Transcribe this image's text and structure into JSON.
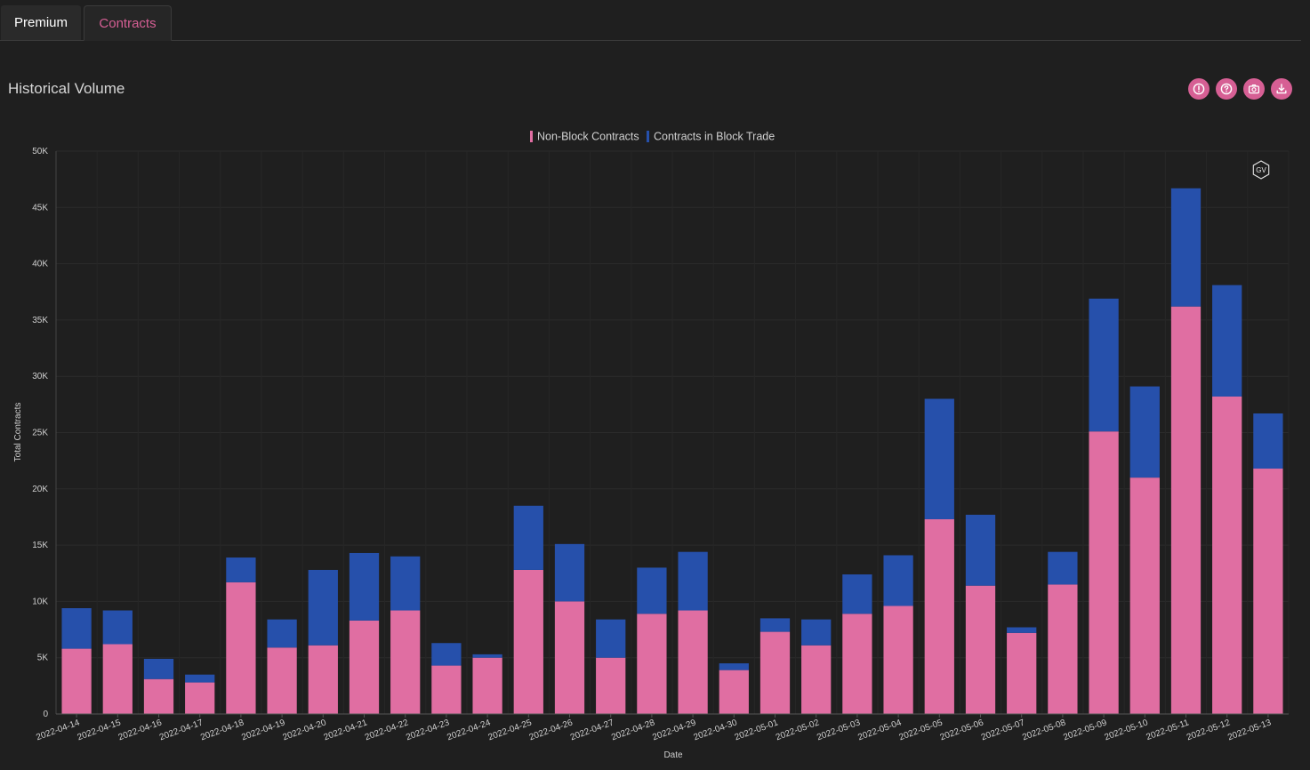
{
  "tabs": [
    {
      "label": "Premium",
      "active": false
    },
    {
      "label": "Contracts",
      "active": true
    }
  ],
  "section": {
    "title": "Historical Volume"
  },
  "toolbar": {
    "icons": [
      "alert-icon",
      "help-icon",
      "camera-icon",
      "download-icon"
    ]
  },
  "colors": {
    "accent": "#d65f94",
    "non_block": "#e06ea2",
    "block": "#2650ab",
    "background": "#1f1f1f",
    "tab_active_text": "#d65f94"
  },
  "watermark": "GV",
  "chart_data": {
    "type": "bar",
    "stacked": true,
    "xlabel": "Date",
    "ylabel": "Total Contracts",
    "ylim": [
      0,
      50000
    ],
    "yticks": [
      0,
      5000,
      10000,
      15000,
      20000,
      25000,
      30000,
      35000,
      40000,
      45000,
      50000
    ],
    "ytick_labels": [
      "0",
      "5K",
      "10K",
      "15K",
      "20K",
      "25K",
      "30K",
      "35K",
      "40K",
      "45K",
      "50K"
    ],
    "legend_position": "top-center",
    "grid": true,
    "categories": [
      "2022-04-14",
      "2022-04-15",
      "2022-04-16",
      "2022-04-17",
      "2022-04-18",
      "2022-04-19",
      "2022-04-20",
      "2022-04-21",
      "2022-04-22",
      "2022-04-23",
      "2022-04-24",
      "2022-04-25",
      "2022-04-26",
      "2022-04-27",
      "2022-04-28",
      "2022-04-29",
      "2022-04-30",
      "2022-05-01",
      "2022-05-02",
      "2022-05-03",
      "2022-05-04",
      "2022-05-05",
      "2022-05-06",
      "2022-05-07",
      "2022-05-08",
      "2022-05-09",
      "2022-05-10",
      "2022-05-11",
      "2022-05-12",
      "2022-05-13"
    ],
    "series": [
      {
        "name": "Non-Block Contracts",
        "color": "#e06ea2",
        "values": [
          5800,
          6200,
          3100,
          2800,
          11700,
          5900,
          6100,
          8300,
          9200,
          4300,
          5000,
          12800,
          10000,
          5000,
          8900,
          9200,
          3900,
          7300,
          6100,
          8900,
          9600,
          17300,
          11400,
          7200,
          11500,
          25100,
          21000,
          36200,
          28200,
          21800
        ]
      },
      {
        "name": "Contracts in Block Trade",
        "color": "#2650ab",
        "values": [
          3600,
          3000,
          1800,
          700,
          2200,
          2500,
          6700,
          6000,
          4800,
          2000,
          300,
          5700,
          5100,
          3400,
          4100,
          5200,
          600,
          1200,
          2300,
          3500,
          4500,
          10700,
          6300,
          500,
          2900,
          11800,
          8100,
          10500,
          9900,
          4900
        ]
      }
    ]
  }
}
